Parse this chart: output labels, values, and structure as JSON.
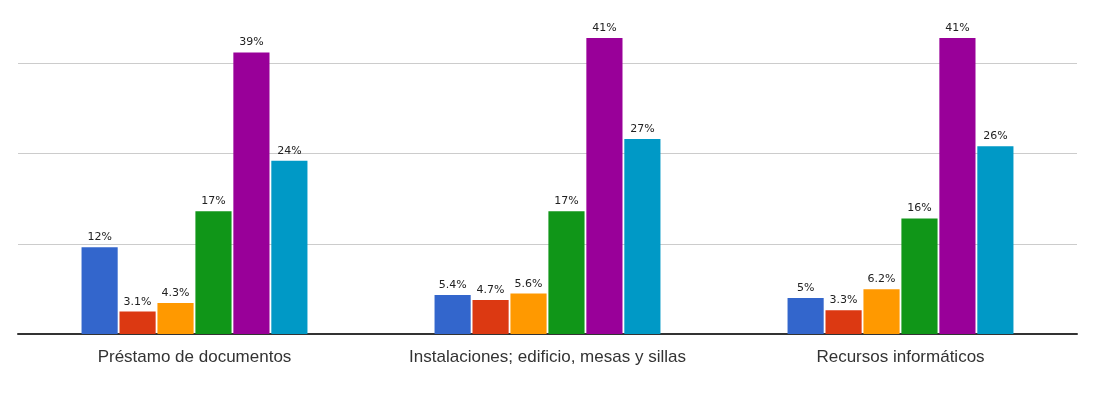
{
  "chart_data": {
    "type": "bar",
    "categories": [
      "Préstamo de documentos",
      "Instalaciones; edificio, mesas y sillas",
      "Recursos informáticos"
    ],
    "series": [
      {
        "color": "#3366cc",
        "values": [
          12,
          5.4,
          5
        ],
        "value_labels": [
          "12%",
          "5.4%",
          "5%"
        ]
      },
      {
        "color": "#dc3912",
        "values": [
          3.1,
          4.7,
          3.3
        ],
        "value_labels": [
          "3.1%",
          "4.7%",
          "3.3%"
        ]
      },
      {
        "color": "#ff9900",
        "values": [
          4.3,
          5.6,
          6.2
        ],
        "value_labels": [
          "4.3%",
          "5.6%",
          "6.2%"
        ]
      },
      {
        "color": "#109618",
        "values": [
          17,
          17,
          16
        ],
        "value_labels": [
          "17%",
          "17%",
          "16%"
        ]
      },
      {
        "color": "#990099",
        "values": [
          39,
          41,
          41
        ],
        "value_labels": [
          "39%",
          "41%",
          "41%"
        ]
      },
      {
        "color": "#0099c6",
        "values": [
          24,
          27,
          26
        ],
        "value_labels": [
          "24%",
          "27%",
          "26%"
        ]
      }
    ],
    "ylim": [
      0,
      41
    ],
    "yticks": [
      {
        "value": 0,
        "label": null
      },
      {
        "value": 12.5,
        "label": null
      },
      {
        "value": 25,
        "label": null
      },
      {
        "value": 37.5,
        "label": null
      }
    ],
    "tick_labels": "x",
    "grid": "y"
  }
}
